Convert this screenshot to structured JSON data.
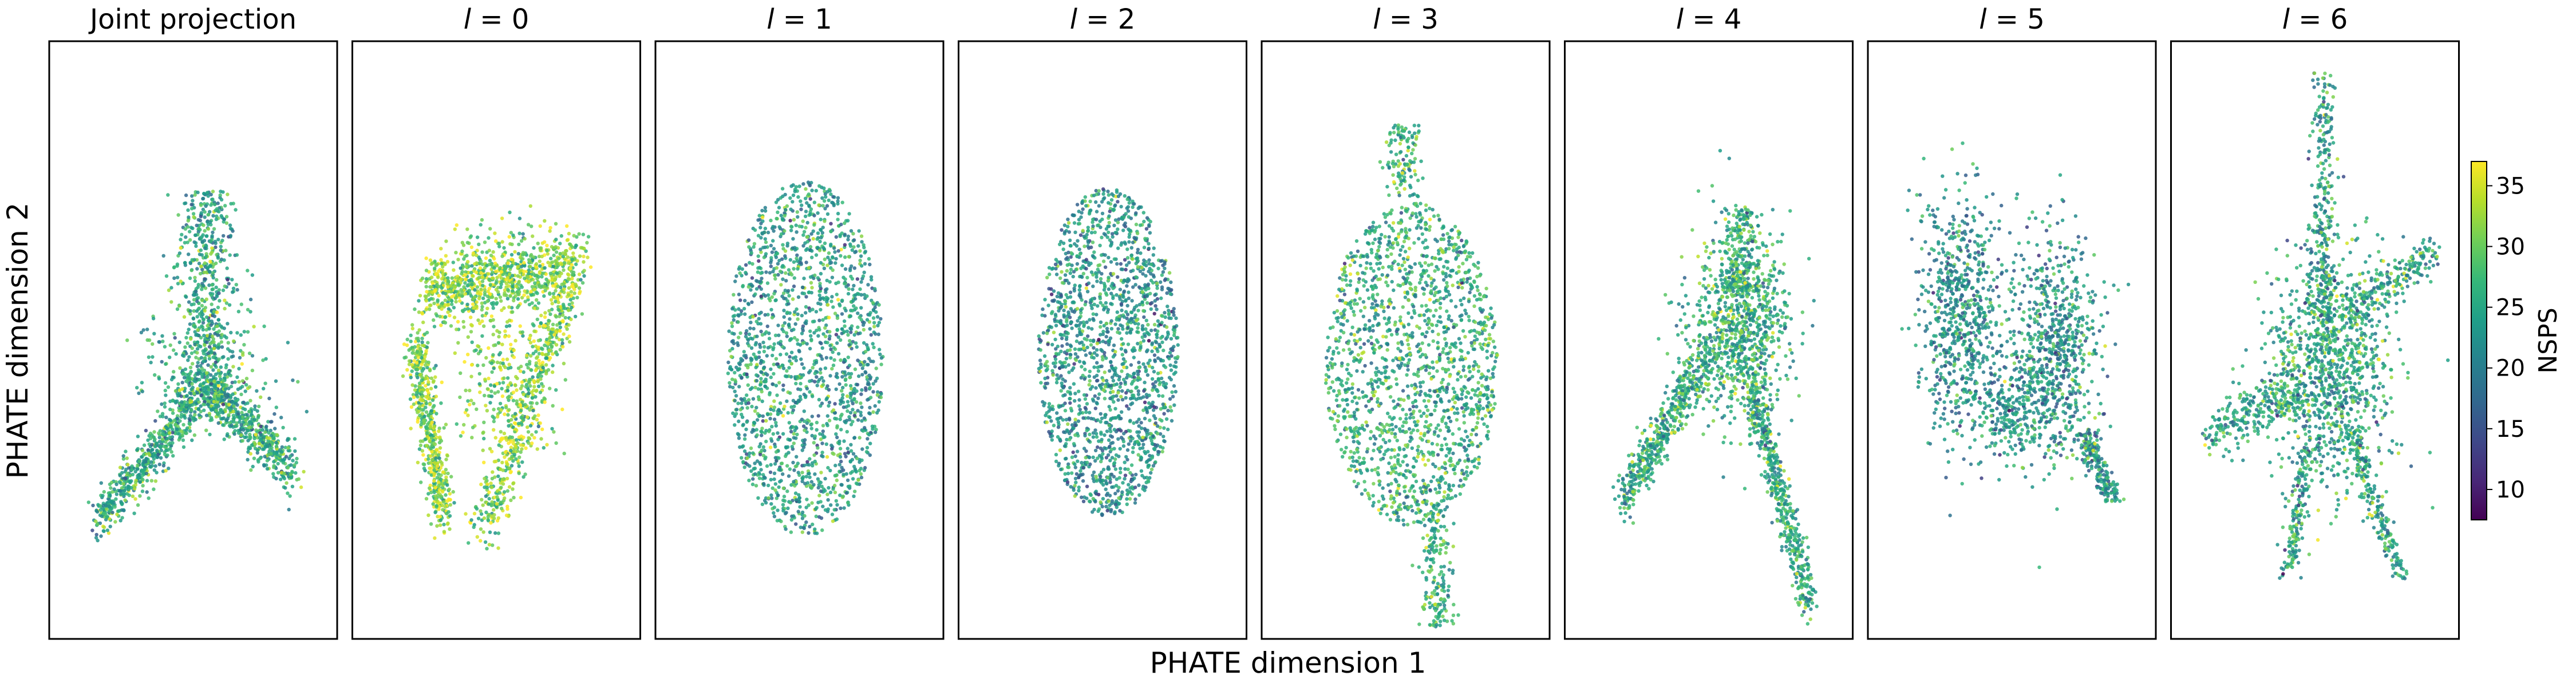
{
  "chart_data": {
    "type": "scatter",
    "xlabel": "PHATE dimension 1",
    "ylabel": "PHATE dimension 2",
    "panels": [
      {
        "title": "Joint projection",
        "italic_prefix": "",
        "shape": "joint",
        "center": [
          0.5,
          0.6
        ],
        "spread": [
          0.32,
          0.24
        ],
        "colors": {
          "mix": 0.6
        }
      },
      {
        "title": " = 0",
        "italic_prefix": "l",
        "shape": "loop",
        "center": [
          0.5,
          0.58
        ],
        "spread": [
          0.3,
          0.25
        ],
        "colors": {
          "mix": 0.8
        }
      },
      {
        "title": " = 1",
        "italic_prefix": "l",
        "shape": "oval",
        "center": [
          0.52,
          0.53
        ],
        "spread": [
          0.3,
          0.27
        ],
        "colors": {
          "mix": 0.55
        }
      },
      {
        "title": " = 2",
        "italic_prefix": "l",
        "shape": "oval",
        "center": [
          0.52,
          0.52
        ],
        "spread": [
          0.27,
          0.25
        ],
        "colors": {
          "mix": 0.52
        }
      },
      {
        "title": " = 3",
        "italic_prefix": "l",
        "shape": "diamond",
        "center": [
          0.52,
          0.54
        ],
        "spread": [
          0.3,
          0.3
        ],
        "colors": {
          "mix": 0.62
        }
      },
      {
        "title": " = 4",
        "italic_prefix": "l",
        "shape": "arc",
        "center": [
          0.5,
          0.58
        ],
        "spread": [
          0.32,
          0.3
        ],
        "colors": {
          "mix": 0.62
        }
      },
      {
        "title": " = 5",
        "italic_prefix": "l",
        "shape": "butterfly",
        "center": [
          0.52,
          0.58
        ],
        "spread": [
          0.32,
          0.2
        ],
        "colors": {
          "mix": 0.5
        }
      },
      {
        "title": " = 6",
        "italic_prefix": "l",
        "shape": "star",
        "center": [
          0.53,
          0.56
        ],
        "spread": [
          0.38,
          0.36
        ],
        "colors": {
          "mix": 0.58
        }
      }
    ],
    "colorbar": {
      "label": "NSPS",
      "ticks": [
        10,
        15,
        20,
        25,
        30,
        35
      ],
      "range": [
        7.5,
        37
      ],
      "colormap": "viridis",
      "stops": [
        "#440154",
        "#482878",
        "#3e4989",
        "#31688e",
        "#26828e",
        "#1f9e89",
        "#35b779",
        "#6ece58",
        "#b5de2b",
        "#fde725"
      ]
    },
    "grid": false,
    "legend": "none"
  }
}
